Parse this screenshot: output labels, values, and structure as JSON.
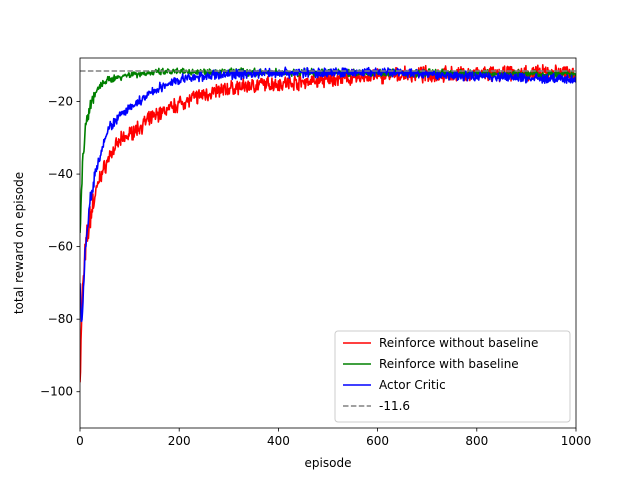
{
  "chart_data": {
    "type": "line",
    "title": "",
    "xlabel": "episode",
    "ylabel": "total reward on episode",
    "xlim": [
      0,
      1000
    ],
    "ylim": [
      -110,
      -8
    ],
    "x_ticks": [
      0,
      200,
      400,
      600,
      800,
      1000
    ],
    "y_ticks": [
      -100,
      -80,
      -60,
      -40,
      -20
    ],
    "grid": false,
    "legend_position": "lower-right",
    "series": [
      {
        "name": "Reinforce without baseline",
        "color": "#ff0000",
        "style": "solid",
        "points": [
          [
            0,
            -97
          ],
          [
            3,
            -82
          ],
          [
            5,
            -72
          ],
          [
            10,
            -63
          ],
          [
            15,
            -57
          ],
          [
            20,
            -52
          ],
          [
            30,
            -46
          ],
          [
            40,
            -41
          ],
          [
            50,
            -38
          ],
          [
            60,
            -35
          ],
          [
            70,
            -33
          ],
          [
            80,
            -31
          ],
          [
            100,
            -29
          ],
          [
            120,
            -27
          ],
          [
            150,
            -24
          ],
          [
            180,
            -22
          ],
          [
            200,
            -20.5
          ],
          [
            250,
            -18
          ],
          [
            300,
            -16.5
          ],
          [
            350,
            -15.5
          ],
          [
            400,
            -15
          ],
          [
            450,
            -14.5
          ],
          [
            500,
            -14
          ],
          [
            550,
            -13.5
          ],
          [
            600,
            -13
          ],
          [
            700,
            -12.5
          ],
          [
            800,
            -12.5
          ],
          [
            900,
            -12.2
          ],
          [
            1000,
            -12
          ]
        ],
        "noise": 2.5
      },
      {
        "name": "Reinforce with baseline",
        "color": "#008000",
        "style": "solid",
        "points": [
          [
            0,
            -57
          ],
          [
            3,
            -45
          ],
          [
            5,
            -38
          ],
          [
            8,
            -32
          ],
          [
            10,
            -28
          ],
          [
            15,
            -24
          ],
          [
            20,
            -21
          ],
          [
            30,
            -18
          ],
          [
            40,
            -16
          ],
          [
            50,
            -14.5
          ],
          [
            70,
            -13.5
          ],
          [
            100,
            -12.5
          ],
          [
            150,
            -12
          ],
          [
            200,
            -11.8
          ],
          [
            300,
            -11.8
          ],
          [
            400,
            -12
          ],
          [
            500,
            -12
          ],
          [
            600,
            -12
          ],
          [
            800,
            -12.3
          ],
          [
            1000,
            -12.5
          ]
        ],
        "noise": 1.2
      },
      {
        "name": "Actor Critic",
        "color": "#0000ff",
        "style": "solid",
        "points": [
          [
            0,
            -71
          ],
          [
            3,
            -80
          ],
          [
            5,
            -78
          ],
          [
            8,
            -68
          ],
          [
            10,
            -62
          ],
          [
            15,
            -55
          ],
          [
            20,
            -48
          ],
          [
            30,
            -40
          ],
          [
            40,
            -35
          ],
          [
            50,
            -30
          ],
          [
            60,
            -27
          ],
          [
            80,
            -24
          ],
          [
            100,
            -22
          ],
          [
            120,
            -20
          ],
          [
            150,
            -17
          ],
          [
            180,
            -15
          ],
          [
            200,
            -14
          ],
          [
            250,
            -13
          ],
          [
            300,
            -12.5
          ],
          [
            400,
            -12
          ],
          [
            500,
            -12
          ],
          [
            600,
            -12
          ],
          [
            700,
            -12.5
          ],
          [
            800,
            -13
          ],
          [
            900,
            -13.5
          ],
          [
            1000,
            -14
          ]
        ],
        "noise": 1.6
      },
      {
        "name": "-11.6",
        "color": "#808080",
        "style": "dashed",
        "points": [
          [
            0,
            -11.6
          ],
          [
            1000,
            -11.6
          ]
        ],
        "noise": 0
      }
    ]
  }
}
